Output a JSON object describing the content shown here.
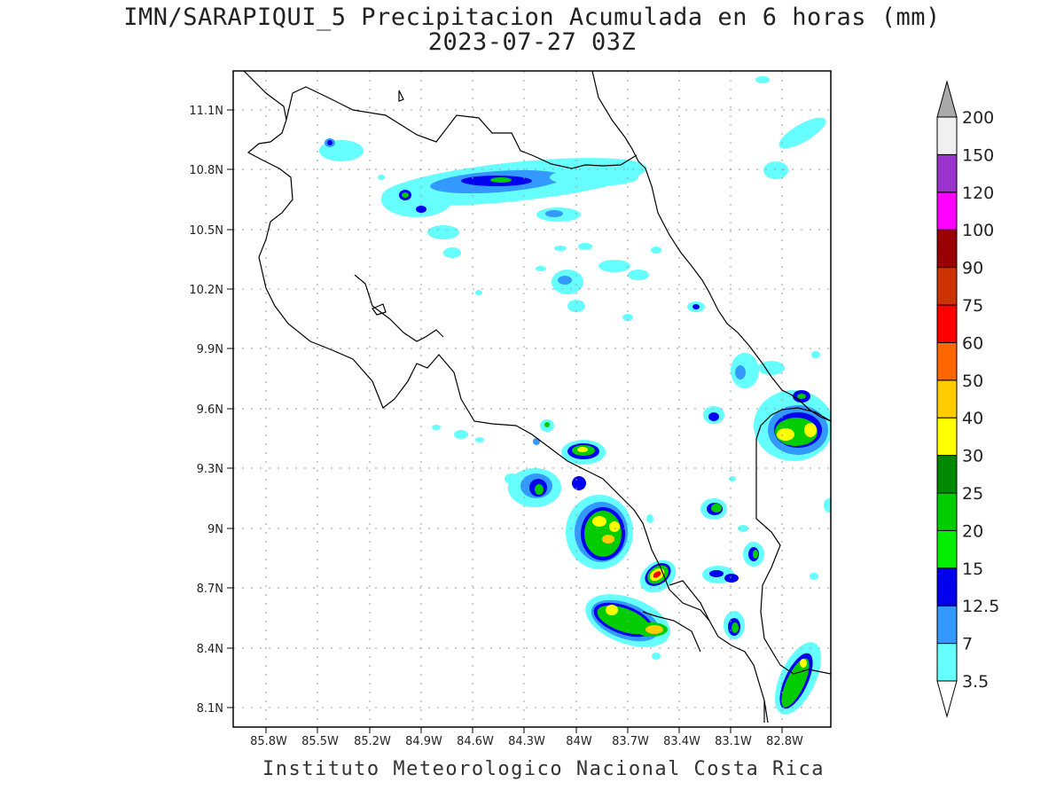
{
  "header": {
    "title_line1": "IMN/SARAPIQUI_5 Precipitacion Acumulada en 6 horas (mm)",
    "title_line2": "2023-07-27 03Z"
  },
  "map": {
    "lat_ticks": [
      "11.1N",
      "10.8N",
      "10.5N",
      "10.2N",
      "9.9N",
      "9.6N",
      "9.3N",
      "9N",
      "8.7N",
      "8.4N",
      "8.1N"
    ],
    "lon_ticks": [
      "85.8W",
      "85.5W",
      "85.2W",
      "84.9W",
      "84.6W",
      "84.3W",
      "84W",
      "83.7W",
      "83.4W",
      "83.1W",
      "82.8W"
    ],
    "grid": "dotted"
  },
  "colorbar": {
    "levels": [
      "3.5",
      "7",
      "12.5",
      "15",
      "20",
      "25",
      "30",
      "40",
      "50",
      "60",
      "75",
      "90",
      "100",
      "120",
      "150",
      "200"
    ],
    "colors": [
      "#66ffff",
      "#3399ff",
      "#0000ee",
      "#00ee00",
      "#00cc00",
      "#008800",
      "#ffff00",
      "#ffcc00",
      "#ff6600",
      "#ff0000",
      "#cc3300",
      "#990000",
      "#ff00ff",
      "#9933cc",
      "#f0f0f0",
      "#aaaaaa"
    ]
  },
  "footer": {
    "credit": "Instituto Meteorologico Nacional Costa Rica"
  }
}
